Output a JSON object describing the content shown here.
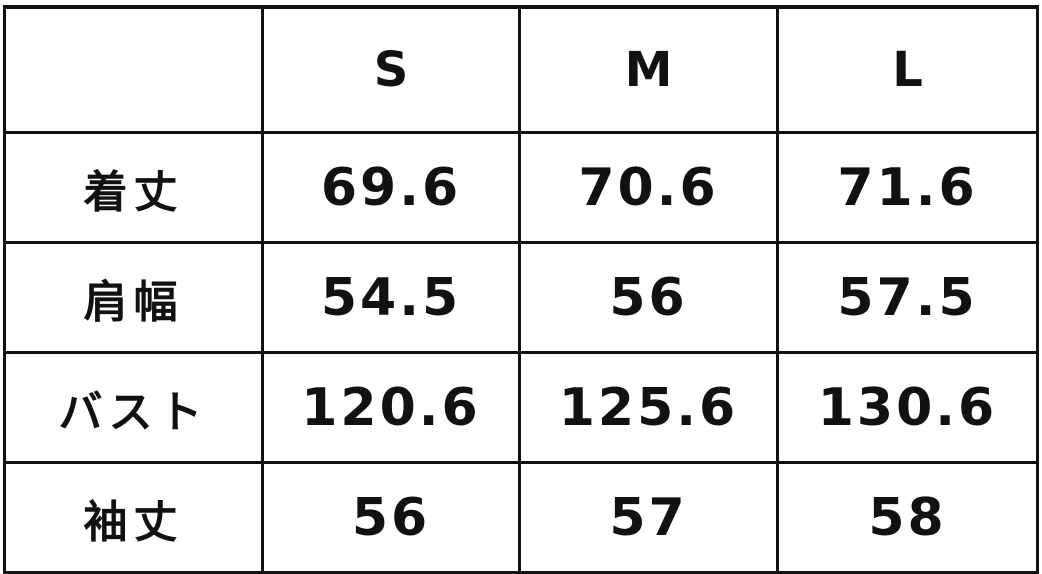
{
  "table": {
    "headers": [
      "",
      "S",
      "M",
      "L"
    ],
    "rows": [
      {
        "label": "着丈",
        "values": [
          "69.6",
          "70.6",
          "71.6"
        ]
      },
      {
        "label": "肩幅",
        "values": [
          "54.5",
          "56",
          "57.5"
        ]
      },
      {
        "label": "バスト",
        "values": [
          "120.6",
          "125.6",
          "130.6"
        ]
      },
      {
        "label": "袖丈",
        "values": [
          "56",
          "57",
          "58"
        ]
      }
    ]
  }
}
